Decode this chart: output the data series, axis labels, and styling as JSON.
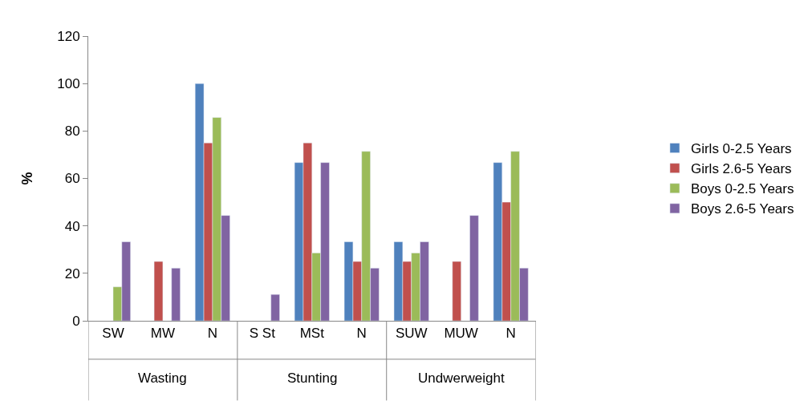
{
  "chart_data": {
    "type": "bar",
    "ylabel": "%",
    "categories": [
      "SW",
      "MW",
      "N",
      "S St",
      "MSt",
      "N",
      "SUW",
      "MUW",
      "N"
    ],
    "annotations": [
      "Wasting",
      "Stunting",
      "Undwerweight"
    ],
    "series": [
      {
        "name": "Girls 0-2.5 Years",
        "color": "#4f81bd",
        "values": [
          null,
          null,
          100,
          null,
          66.7,
          33.3,
          33.3,
          null,
          66.7
        ]
      },
      {
        "name": "Girls 2.6-5 Years",
        "color": "#c0504d",
        "values": [
          null,
          25,
          75,
          null,
          75,
          25,
          25,
          25,
          50
        ]
      },
      {
        "name": "Boys 0-2.5 Years",
        "color": "#9bbb59",
        "values": [
          14.3,
          null,
          85.7,
          null,
          28.6,
          71.4,
          28.6,
          null,
          71.4
        ]
      },
      {
        "name": "Boys 2.6-5 Years",
        "color": "#8064a2",
        "values": [
          33.3,
          22.2,
          44.4,
          11.1,
          66.7,
          22.2,
          33.3,
          44.4,
          22.2
        ]
      }
    ],
    "ylim": [
      0,
      120
    ],
    "yticks": [
      0,
      20,
      40,
      60,
      80,
      100,
      120
    ],
    "grid": false,
    "legend": "right"
  }
}
